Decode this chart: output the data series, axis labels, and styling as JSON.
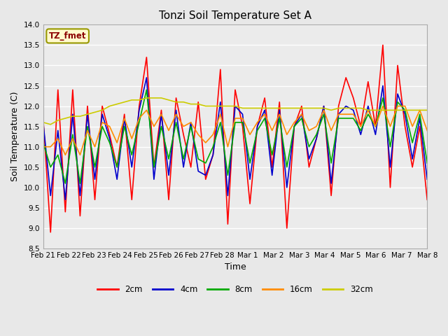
{
  "title": "Tonzi Soil Temperature Set A",
  "xlabel": "Time",
  "ylabel": "Soil Temperature (C)",
  "ylim": [
    8.5,
    14.0
  ],
  "annotation": "TZ_fmet",
  "annotation_color": "#8B0000",
  "annotation_bg": "#FFFACD",
  "annotation_border": "#999900",
  "bg_color": "#E8E8E8",
  "plot_bg": "#EBEBEB",
  "x_labels": [
    "Feb 21",
    "Feb 22",
    "Feb 23",
    "Feb 24",
    "Feb 25",
    "Feb 26",
    "Feb 27",
    "Feb 28",
    "Mar 1",
    "Mar 2",
    "Mar 3",
    "Mar 4",
    "Mar 5",
    "Mar 6",
    "Mar 7",
    "Mar 8"
  ],
  "series": {
    "2cm": [
      11.7,
      8.9,
      12.4,
      9.4,
      12.4,
      9.3,
      12.0,
      9.7,
      12.0,
      11.3,
      10.5,
      11.8,
      9.7,
      12.0,
      13.2,
      10.5,
      11.9,
      9.7,
      12.2,
      11.3,
      10.5,
      12.1,
      10.2,
      10.8,
      12.9,
      9.1,
      12.4,
      11.5,
      9.6,
      11.5,
      12.2,
      10.5,
      12.1,
      9.0,
      11.5,
      12.0,
      10.5,
      11.2,
      12.0,
      9.8,
      12.0,
      12.7,
      12.2,
      11.5,
      12.6,
      11.5,
      13.5,
      10.0,
      13.0,
      11.5,
      10.5,
      11.5,
      9.7
    ],
    "4cm": [
      11.6,
      9.8,
      11.4,
      9.7,
      11.8,
      9.8,
      11.8,
      10.2,
      11.8,
      11.2,
      10.2,
      11.7,
      10.5,
      11.9,
      12.7,
      10.2,
      11.8,
      10.3,
      11.9,
      10.5,
      11.6,
      10.4,
      10.3,
      10.8,
      12.1,
      9.8,
      12.0,
      11.8,
      10.2,
      11.5,
      11.9,
      10.3,
      11.9,
      10.0,
      11.5,
      11.8,
      10.7,
      11.2,
      12.0,
      10.1,
      11.8,
      12.0,
      11.9,
      11.3,
      12.0,
      11.3,
      12.5,
      10.5,
      12.3,
      11.8,
      10.7,
      11.7,
      10.2
    ],
    "8cm": [
      11.1,
      10.5,
      10.8,
      10.1,
      11.3,
      10.1,
      11.5,
      10.5,
      11.5,
      11.1,
      10.5,
      11.5,
      10.8,
      11.6,
      12.4,
      10.5,
      11.5,
      10.7,
      11.6,
      10.7,
      11.5,
      10.7,
      10.6,
      11.0,
      11.6,
      10.3,
      11.6,
      11.6,
      10.6,
      11.4,
      11.7,
      10.8,
      11.7,
      10.5,
      11.5,
      11.7,
      11.0,
      11.3,
      11.8,
      10.6,
      11.7,
      11.7,
      11.7,
      11.4,
      11.8,
      11.5,
      12.2,
      11.0,
      12.1,
      11.9,
      11.1,
      11.8,
      10.6
    ],
    "16cm": [
      11.0,
      11.0,
      11.2,
      10.8,
      11.2,
      10.8,
      11.4,
      11.0,
      11.6,
      11.5,
      11.1,
      11.7,
      11.2,
      11.7,
      11.9,
      11.5,
      11.8,
      11.4,
      11.8,
      11.5,
      11.6,
      11.3,
      11.1,
      11.3,
      11.8,
      11.0,
      11.7,
      11.7,
      11.3,
      11.6,
      11.8,
      11.4,
      11.8,
      11.3,
      11.6,
      11.8,
      11.4,
      11.5,
      11.9,
      11.4,
      11.8,
      11.8,
      11.8,
      11.5,
      11.9,
      11.5,
      12.0,
      11.5,
      12.0,
      12.0,
      11.5,
      11.9,
      11.4
    ],
    "32cm": [
      11.6,
      11.55,
      11.65,
      11.7,
      11.75,
      11.75,
      11.8,
      11.85,
      11.9,
      12.0,
      12.05,
      12.1,
      12.15,
      12.15,
      12.2,
      12.2,
      12.2,
      12.15,
      12.1,
      12.1,
      12.05,
      12.05,
      12.0,
      12.0,
      12.0,
      12.0,
      12.0,
      11.95,
      11.95,
      11.95,
      11.95,
      11.95,
      11.95,
      11.95,
      11.95,
      11.95,
      11.95,
      11.95,
      11.95,
      11.9,
      11.95,
      11.95,
      11.95,
      11.95,
      11.9,
      11.9,
      11.9,
      11.9,
      11.9,
      11.9,
      11.9,
      11.9,
      11.9
    ]
  },
  "colors": {
    "2cm": "#FF0000",
    "4cm": "#0000CC",
    "8cm": "#00AA00",
    "16cm": "#FF8C00",
    "32cm": "#CCCC00"
  },
  "legend_entries": [
    "2cm",
    "4cm",
    "8cm",
    "16cm",
    "32cm"
  ]
}
